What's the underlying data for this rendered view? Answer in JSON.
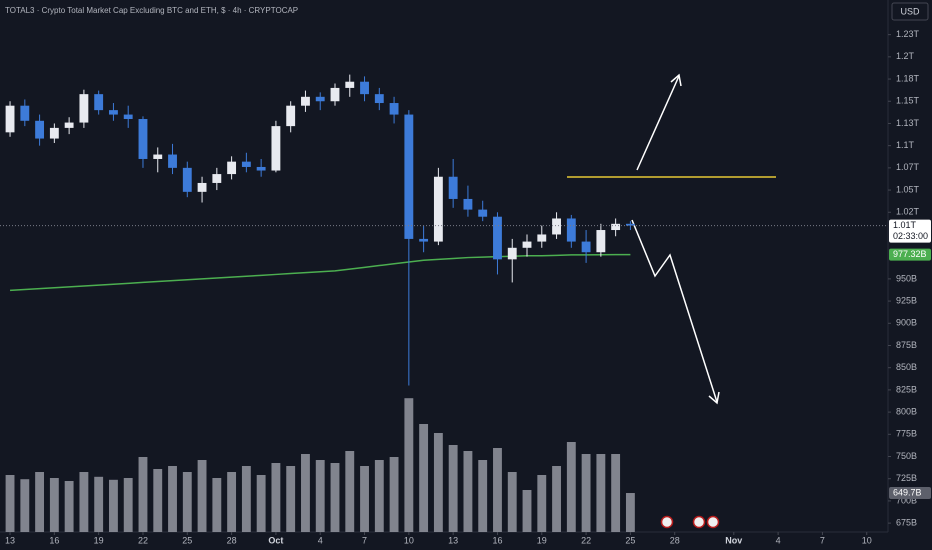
{
  "chart_data": {
    "type": "candlestick",
    "title": "TOTAL3 · Crypto Total Market Cap Excluding BTC and ETH, $ · 4h · CRYPTOCAP",
    "currency": "USD",
    "x": [
      0,
      1,
      2,
      3,
      4,
      5,
      6,
      7,
      8,
      9,
      10,
      11,
      12,
      13,
      14,
      15,
      16,
      17,
      18,
      19,
      20,
      21,
      22,
      23,
      24,
      25,
      26,
      27,
      28,
      29,
      30,
      31,
      32,
      33,
      34,
      35,
      36,
      37,
      38,
      39,
      40,
      41,
      42
    ],
    "ohlc": [
      [
        1115,
        1150,
        1110,
        1145
      ],
      [
        1145,
        1152,
        1122,
        1128
      ],
      [
        1128,
        1135,
        1100,
        1108
      ],
      [
        1108,
        1125,
        1103,
        1120
      ],
      [
        1120,
        1132,
        1113,
        1126
      ],
      [
        1126,
        1163,
        1120,
        1158
      ],
      [
        1158,
        1162,
        1135,
        1140
      ],
      [
        1140,
        1148,
        1128,
        1135
      ],
      [
        1135,
        1145,
        1120,
        1130
      ],
      [
        1130,
        1133,
        1075,
        1085
      ],
      [
        1085,
        1098,
        1070,
        1090
      ],
      [
        1090,
        1102,
        1068,
        1075
      ],
      [
        1075,
        1082,
        1042,
        1048
      ],
      [
        1048,
        1065,
        1036,
        1058
      ],
      [
        1058,
        1075,
        1050,
        1068
      ],
      [
        1068,
        1088,
        1062,
        1082
      ],
      [
        1082,
        1092,
        1070,
        1076
      ],
      [
        1076,
        1085,
        1065,
        1072
      ],
      [
        1072,
        1128,
        1070,
        1122
      ],
      [
        1122,
        1150,
        1115,
        1145
      ],
      [
        1145,
        1162,
        1138,
        1155
      ],
      [
        1155,
        1160,
        1140,
        1150
      ],
      [
        1150,
        1170,
        1145,
        1165
      ],
      [
        1165,
        1180,
        1155,
        1172
      ],
      [
        1172,
        1178,
        1150,
        1158
      ],
      [
        1158,
        1165,
        1140,
        1148
      ],
      [
        1148,
        1155,
        1125,
        1135
      ],
      [
        1135,
        1140,
        830,
        995
      ],
      [
        995,
        1010,
        980,
        992
      ],
      [
        992,
        1075,
        988,
        1065
      ],
      [
        1065,
        1085,
        1030,
        1040
      ],
      [
        1040,
        1055,
        1020,
        1028
      ],
      [
        1028,
        1038,
        1015,
        1020
      ],
      [
        1020,
        1025,
        955,
        972
      ],
      [
        972,
        995,
        946,
        985
      ],
      [
        985,
        1000,
        975,
        992
      ],
      [
        992,
        1010,
        985,
        1000
      ],
      [
        1000,
        1025,
        995,
        1018
      ],
      [
        1018,
        1022,
        985,
        992
      ],
      [
        992,
        1005,
        968,
        980
      ],
      [
        980,
        1012,
        975,
        1005
      ],
      [
        1005,
        1018,
        998,
        1012
      ],
      [
        1012,
        1015,
        1005,
        1010
      ]
    ],
    "up_color": "#e8eaf0",
    "down_color": "#3d7bd9",
    "volume": [
      950,
      880,
      1000,
      900,
      850,
      1000,
      920,
      870,
      900,
      1250,
      1050,
      1100,
      1000,
      1200,
      900,
      1000,
      1100,
      950,
      1150,
      1100,
      1300,
      1200,
      1150,
      1350,
      1100,
      1200,
      1250,
      2230,
      1800,
      1650,
      1450,
      1350,
      1200,
      1400,
      1000,
      700,
      950,
      1100,
      1500,
      1300,
      1300,
      1300,
      649.7
    ],
    "volume_color": "#9598a1",
    "volume_ylim": [
      0,
      2300
    ],
    "last_volume_label": "649.7B",
    "ma": [
      937,
      938,
      939,
      940,
      941,
      942,
      943,
      944,
      945,
      946,
      947,
      948,
      949,
      950,
      951,
      952,
      953,
      954,
      955,
      956,
      957,
      958,
      959,
      961,
      963,
      965,
      967,
      969,
      971,
      972,
      973,
      974,
      974.5,
      975,
      975.5,
      976,
      976,
      976.5,
      977,
      977,
      977.2,
      977.3,
      977.32
    ],
    "ma_color": "#4caf50",
    "ma_label": "977.32B",
    "last_price_label": "1.01T",
    "countdown": "02:33:00",
    "xlim": [
      -0.68,
      59.44
    ],
    "ylim": [
      665,
      1264
    ],
    "grid": false,
    "xticks": [
      {
        "value": 0,
        "label": "13"
      },
      {
        "value": 3,
        "label": "16"
      },
      {
        "value": 6,
        "label": "19"
      },
      {
        "value": 9,
        "label": "22"
      },
      {
        "value": 12,
        "label": "25"
      },
      {
        "value": 15,
        "label": "28"
      },
      {
        "value": 18,
        "label": "Oct"
      },
      {
        "value": 21,
        "label": "4"
      },
      {
        "value": 24,
        "label": "7"
      },
      {
        "value": 27,
        "label": "10"
      },
      {
        "value": 30,
        "label": "13"
      },
      {
        "value": 33,
        "label": "16"
      },
      {
        "value": 36,
        "label": "19"
      },
      {
        "value": 39,
        "label": "22"
      },
      {
        "value": 42,
        "label": "25"
      },
      {
        "value": 45,
        "label": "28"
      },
      {
        "value": 49,
        "label": "Nov"
      },
      {
        "value": 52,
        "label": "4"
      },
      {
        "value": 55,
        "label": "7"
      },
      {
        "value": 58,
        "label": "10"
      }
    ],
    "yticks": [
      {
        "value": 1225,
        "label": "1.23T"
      },
      {
        "value": 1200,
        "label": "1.2T"
      },
      {
        "value": 1175,
        "label": "1.18T"
      },
      {
        "value": 1150,
        "label": "1.15T"
      },
      {
        "value": 1125,
        "label": "1.13T"
      },
      {
        "value": 1100,
        "label": "1.1T"
      },
      {
        "value": 1075,
        "label": "1.07T"
      },
      {
        "value": 1050,
        "label": "1.05T"
      },
      {
        "value": 1025,
        "label": "1.02T"
      },
      {
        "value": 950,
        "label": "950B"
      },
      {
        "value": 925,
        "label": "925B"
      },
      {
        "value": 900,
        "label": "900B"
      },
      {
        "value": 875,
        "label": "875B"
      },
      {
        "value": 850,
        "label": "850B"
      },
      {
        "value": 825,
        "label": "825B"
      },
      {
        "value": 800,
        "label": "800B"
      },
      {
        "value": 775,
        "label": "775B"
      },
      {
        "value": 750,
        "label": "750B"
      },
      {
        "value": 725,
        "label": "725B"
      },
      {
        "value": 700,
        "label": "700B"
      },
      {
        "value": 675,
        "label": "675B"
      }
    ]
  }
}
